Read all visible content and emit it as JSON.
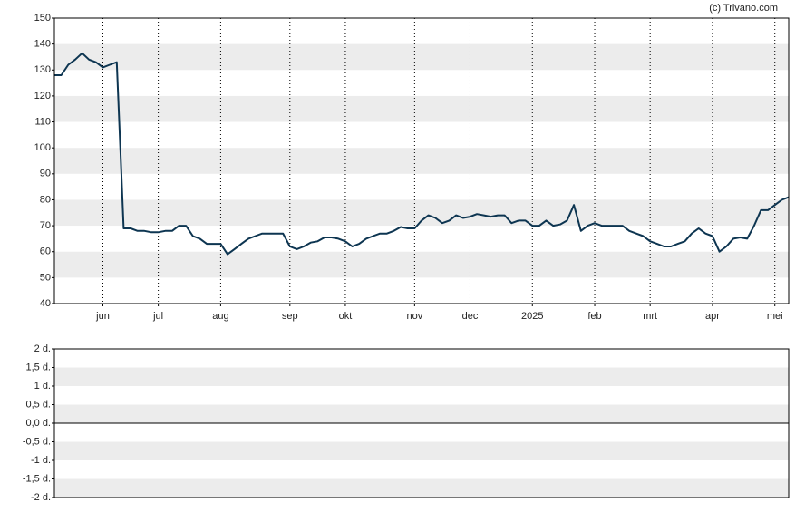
{
  "credit": "(c) Trivano.com",
  "chart_data": [
    {
      "type": "line",
      "categories": [
        null,
        null,
        null,
        null,
        null,
        null,
        null,
        "jun",
        null,
        null,
        null,
        null,
        null,
        null,
        null,
        "jul",
        null,
        null,
        null,
        null,
        null,
        null,
        null,
        null,
        "aug",
        null,
        null,
        null,
        null,
        null,
        null,
        null,
        null,
        null,
        "sep",
        null,
        null,
        null,
        null,
        null,
        null,
        null,
        "okt",
        null,
        null,
        null,
        null,
        null,
        null,
        null,
        null,
        null,
        "nov",
        null,
        null,
        null,
        null,
        null,
        null,
        null,
        "dec",
        null,
        null,
        null,
        null,
        null,
        null,
        null,
        null,
        "2025",
        null,
        null,
        null,
        null,
        null,
        null,
        null,
        null,
        "feb",
        null,
        null,
        null,
        null,
        null,
        null,
        null,
        "mrt",
        null,
        null,
        null,
        null,
        null,
        null,
        null,
        null,
        "apr",
        null,
        null,
        null,
        null,
        null,
        null,
        null,
        null,
        "mei",
        null,
        null
      ],
      "series": [
        {
          "color": "#0d3551",
          "values": [
            128,
            128,
            132,
            134,
            136.5,
            134,
            133,
            131,
            132,
            133,
            69,
            69,
            68,
            68,
            67.5,
            67.5,
            68,
            68,
            70,
            70,
            66,
            65,
            63,
            63,
            63,
            59,
            61,
            63,
            65,
            66,
            67,
            67,
            67,
            67,
            62,
            61,
            62,
            63.5,
            64,
            65.5,
            65.5,
            65,
            64,
            62,
            63,
            65,
            66,
            67,
            67,
            68,
            69.5,
            69,
            69,
            72,
            74,
            73,
            71,
            72,
            74,
            73,
            73.5,
            74.5,
            74,
            73.5,
            74,
            74,
            71,
            72,
            72,
            70,
            70,
            72,
            70,
            70.5,
            72,
            78,
            68,
            70,
            71,
            70,
            70,
            70,
            70,
            68,
            67,
            66,
            64,
            63,
            62,
            62,
            63,
            64,
            67,
            69,
            67,
            66,
            60,
            62,
            65,
            65.5,
            65,
            70,
            76,
            76,
            78,
            80,
            81
          ]
        }
      ],
      "ylim": [
        40,
        150
      ],
      "yticks": [
        40,
        50,
        60,
        70,
        80,
        90,
        100,
        110,
        120,
        130,
        140,
        150
      ],
      "grid": true
    },
    {
      "type": "bar",
      "ylim": [
        -2,
        2
      ],
      "yticks": [
        {
          "value": -2,
          "label": "-2 d."
        },
        {
          "value": -1.5,
          "label": "-1,5 d."
        },
        {
          "value": -1,
          "label": "-1 d."
        },
        {
          "value": -0.5,
          "label": "-0,5 d."
        },
        {
          "value": 0,
          "label": "0,0 d."
        },
        {
          "value": 0.5,
          "label": "0,5 d."
        },
        {
          "value": 1,
          "label": "1 d."
        },
        {
          "value": 1.5,
          "label": "1,5 d."
        },
        {
          "value": 2,
          "label": "2 d."
        }
      ],
      "grid": true
    }
  ]
}
